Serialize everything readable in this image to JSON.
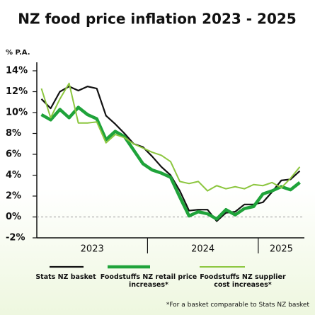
{
  "chart_data": {
    "type": "line",
    "title": "NZ food price inflation 2023 - 2025",
    "y_label": "% P.A.",
    "categories": [
      null,
      null,
      null,
      null,
      null,
      null,
      null,
      null,
      null,
      null,
      null,
      null,
      null,
      null,
      null,
      null,
      null,
      null,
      null,
      null,
      null,
      null,
      null,
      null,
      null,
      null,
      null,
      null,
      null
    ],
    "year_labels": [
      "2023",
      "2024",
      "2025"
    ],
    "ylim": [
      -2,
      14
    ],
    "yticks": [
      {
        "value": -2,
        "label": "-2%"
      },
      {
        "value": 0,
        "label": "0%"
      },
      {
        "value": 2,
        "label": "2%"
      },
      {
        "value": 4,
        "label": "4%"
      },
      {
        "value": 6,
        "label": "6%"
      },
      {
        "value": 8,
        "label": "8%"
      },
      {
        "value": 10,
        "label": "10%"
      },
      {
        "value": 12,
        "label": "12%"
      },
      {
        "value": 14,
        "label": "14%"
      }
    ],
    "zero_line": true,
    "series": [
      {
        "name": "Stats NZ basket",
        "color": "#111111",
        "width": 2.2,
        "values": [
          11.3,
          10.4,
          12.0,
          12.5,
          12.1,
          12.5,
          12.3,
          9.7,
          8.9,
          8.0,
          7.0,
          6.7,
          5.8,
          4.8,
          4.0,
          2.5,
          0.6,
          0.7,
          0.7,
          -0.4,
          0.4,
          0.5,
          1.2,
          1.2,
          1.4,
          2.4,
          3.5,
          3.6,
          4.4
        ]
      },
      {
        "name": "Foodstuffs NZ retail price increases*",
        "color": "#1fa33a",
        "width": 4.5,
        "values": [
          9.8,
          9.3,
          10.3,
          9.5,
          10.5,
          9.8,
          9.4,
          7.4,
          8.2,
          7.7,
          6.4,
          5.1,
          4.5,
          4.2,
          3.8,
          1.9,
          0.1,
          0.5,
          0.3,
          -0.2,
          0.7,
          0.2,
          0.8,
          1.0,
          2.2,
          2.5,
          2.9,
          2.6,
          3.3
        ]
      },
      {
        "name": "Foodstuffs NZ supplier cost increases*",
        "color": "#8cc63f",
        "width": 2,
        "values": [
          12.3,
          9.5,
          11.3,
          12.8,
          9.0,
          9.0,
          9.1,
          7.1,
          7.9,
          7.6,
          7.0,
          6.6,
          6.2,
          5.9,
          5.3,
          3.4,
          3.2,
          3.4,
          2.5,
          3.0,
          2.7,
          2.9,
          2.7,
          3.1,
          3.0,
          3.3,
          2.8,
          3.7,
          4.8
        ]
      }
    ],
    "footnote": "*For a basket comparable to Stats NZ basket"
  }
}
